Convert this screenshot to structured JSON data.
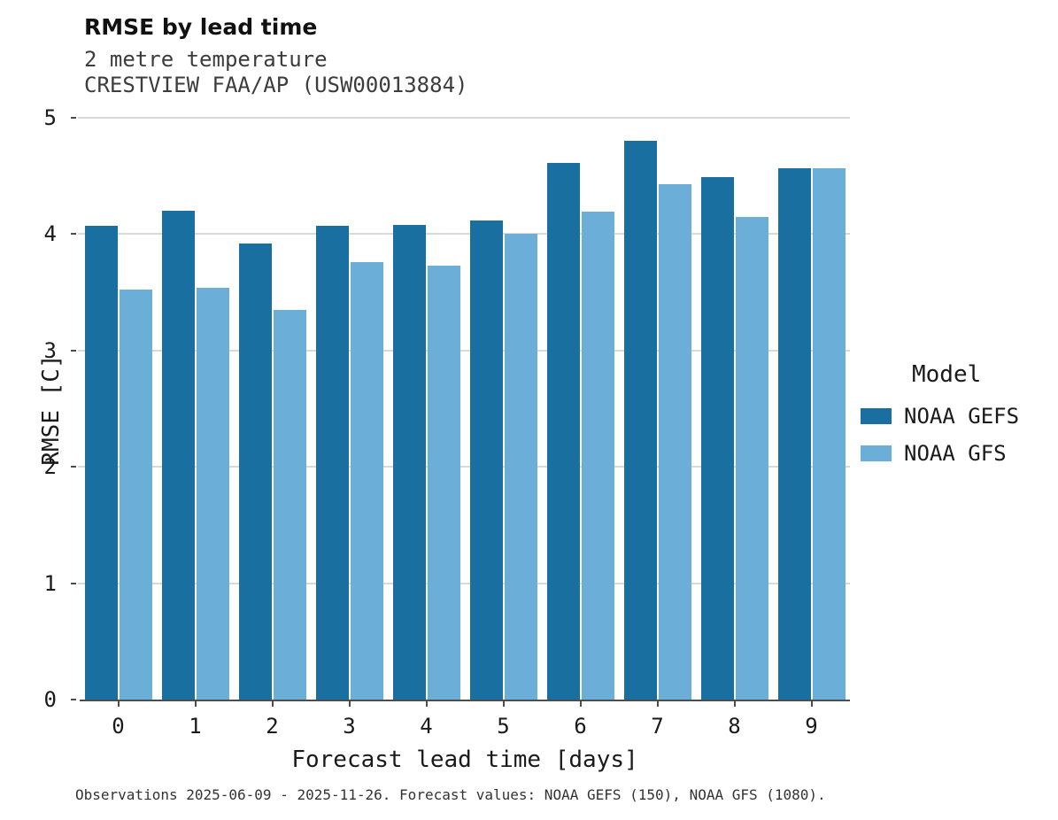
{
  "title": "RMSE by lead time",
  "subtitle1": "2 metre temperature",
  "subtitle2": "CRESTVIEW FAA/AP (USW00013884)",
  "footer": "Observations 2025-06-09 - 2025-11-26. Forecast values: NOAA GEFS (150), NOAA GFS (1080).",
  "legend": {
    "title": "Model",
    "entries": [
      {
        "label": "NOAA GEFS",
        "color": "#196f9f"
      },
      {
        "label": "NOAA GFS",
        "color": "#6bafd8"
      }
    ]
  },
  "chart_data": {
    "type": "bar",
    "title": "RMSE by lead time",
    "subtitle": "2 metre temperature — CRESTVIEW FAA/AP (USW00013884)",
    "xlabel": "Forecast lead time [days]",
    "ylabel": "RMSE [C]",
    "categories": [
      "0",
      "1",
      "2",
      "3",
      "4",
      "5",
      "6",
      "7",
      "8",
      "9"
    ],
    "series": [
      {
        "name": "NOAA GEFS",
        "color": "#196f9f",
        "values": [
          4.07,
          4.2,
          3.92,
          4.07,
          4.08,
          4.12,
          4.61,
          4.8,
          4.49,
          4.57
        ]
      },
      {
        "name": "NOAA GFS",
        "color": "#6bafd8",
        "values": [
          3.52,
          3.54,
          3.35,
          3.76,
          3.73,
          4.0,
          4.19,
          4.43,
          4.15,
          4.57
        ]
      }
    ],
    "ylim": [
      0,
      5
    ],
    "yticks": [
      0,
      1,
      2,
      3,
      4,
      5
    ],
    "grid": true,
    "legend_position": "right"
  }
}
